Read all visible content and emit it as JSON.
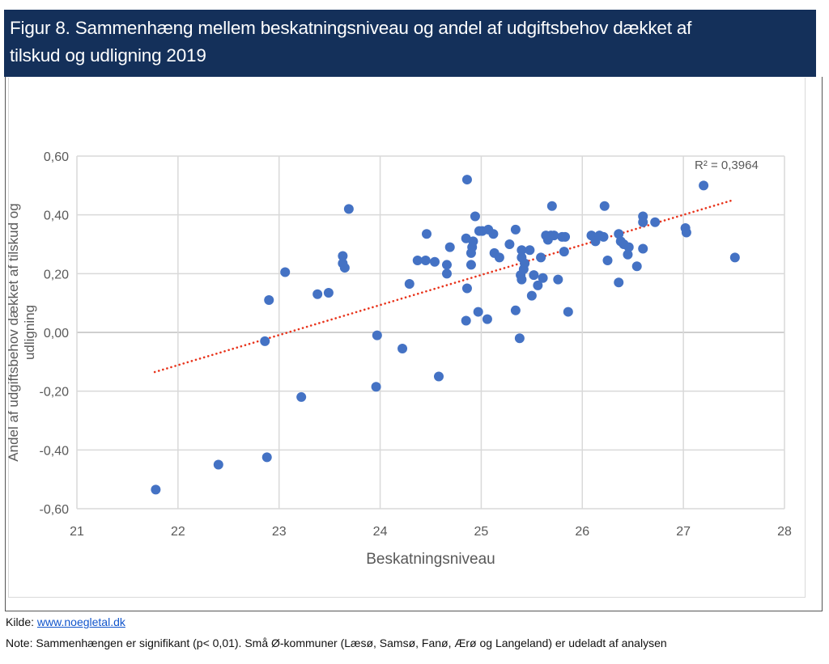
{
  "header": {
    "title_line1": "Figur 8. Sammenhæng mellem beskatningsniveau og andel af udgiftsbehov dækket af",
    "title_line2": "tilskud og udligning 2019"
  },
  "footer": {
    "source_label": "Kilde: ",
    "source_link": "www.noegletal.dk",
    "note": "Note: Sammenhængen er signifikant (p< 0,01). Små Ø-kommuner (Læsø, Samsø, Fanø, Ærø og Langeland) er udeladt af analysen"
  },
  "colors": {
    "header_bg": "#14305a",
    "point": "#4472c4",
    "trendline": "#e8341c",
    "grid": "#d9d9d9",
    "zero_line": "#bfbfbf"
  },
  "chart_data": {
    "type": "scatter",
    "title": "Figur 8. Sammenhæng mellem beskatningsniveau og andel af udgiftsbehov dækket af tilskud og udligning 2019",
    "xlabel": "Beskatningsniveau",
    "ylabel_line1": "Andel af udgiftsbehov dækket af tilskud og",
    "ylabel_line2": "udligning",
    "xlim": [
      21,
      28
    ],
    "ylim": [
      -0.6,
      0.6
    ],
    "x_ticks": [
      21,
      22,
      23,
      24,
      25,
      26,
      27,
      28
    ],
    "x_tick_labels": [
      "21",
      "22",
      "23",
      "24",
      "25",
      "26",
      "27",
      "28"
    ],
    "y_ticks": [
      0.6,
      0.4,
      0.2,
      0.0,
      -0.2,
      -0.4,
      -0.6
    ],
    "y_tick_labels": [
      "0,60",
      "0,40",
      "0,20",
      "0,00",
      "-0,20",
      "-0,40",
      "-0,60"
    ],
    "grid": true,
    "legend": "none",
    "trendline": {
      "type": "linear",
      "style": "dotted",
      "x_start": 21.77,
      "x_end": 27.5,
      "slope": 0.1023,
      "intercept": -2.362,
      "label": "R² = 0,3964"
    },
    "points": [
      {
        "x": 21.78,
        "y": -0.535
      },
      {
        "x": 22.4,
        "y": -0.45
      },
      {
        "x": 22.88,
        "y": -0.425
      },
      {
        "x": 22.86,
        "y": -0.03
      },
      {
        "x": 22.9,
        "y": 0.11
      },
      {
        "x": 23.06,
        "y": 0.205
      },
      {
        "x": 23.22,
        "y": -0.22
      },
      {
        "x": 23.38,
        "y": 0.13
      },
      {
        "x": 23.49,
        "y": 0.135
      },
      {
        "x": 23.63,
        "y": 0.26
      },
      {
        "x": 23.63,
        "y": 0.235
      },
      {
        "x": 23.65,
        "y": 0.22
      },
      {
        "x": 23.69,
        "y": 0.42
      },
      {
        "x": 23.96,
        "y": -0.185
      },
      {
        "x": 23.97,
        "y": -0.01
      },
      {
        "x": 24.22,
        "y": -0.055
      },
      {
        "x": 24.29,
        "y": 0.165
      },
      {
        "x": 24.37,
        "y": 0.245
      },
      {
        "x": 24.45,
        "y": 0.245
      },
      {
        "x": 24.46,
        "y": 0.335
      },
      {
        "x": 24.54,
        "y": 0.24
      },
      {
        "x": 24.58,
        "y": -0.15
      },
      {
        "x": 24.66,
        "y": 0.23
      },
      {
        "x": 24.66,
        "y": 0.2
      },
      {
        "x": 24.69,
        "y": 0.29
      },
      {
        "x": 24.85,
        "y": 0.32
      },
      {
        "x": 24.85,
        "y": 0.04
      },
      {
        "x": 24.86,
        "y": 0.52
      },
      {
        "x": 24.86,
        "y": 0.15
      },
      {
        "x": 24.9,
        "y": 0.27
      },
      {
        "x": 24.9,
        "y": 0.23
      },
      {
        "x": 24.91,
        "y": 0.29
      },
      {
        "x": 24.92,
        "y": 0.31
      },
      {
        "x": 24.94,
        "y": 0.395
      },
      {
        "x": 24.97,
        "y": 0.07
      },
      {
        "x": 24.98,
        "y": 0.345
      },
      {
        "x": 25.01,
        "y": 0.345
      },
      {
        "x": 25.06,
        "y": 0.045
      },
      {
        "x": 25.07,
        "y": 0.35
      },
      {
        "x": 25.12,
        "y": 0.335
      },
      {
        "x": 25.13,
        "y": 0.27
      },
      {
        "x": 25.18,
        "y": 0.255
      },
      {
        "x": 25.28,
        "y": 0.3
      },
      {
        "x": 25.34,
        "y": 0.35
      },
      {
        "x": 25.34,
        "y": 0.075
      },
      {
        "x": 25.38,
        "y": -0.02
      },
      {
        "x": 25.39,
        "y": 0.195
      },
      {
        "x": 25.4,
        "y": 0.28
      },
      {
        "x": 25.4,
        "y": 0.255
      },
      {
        "x": 25.4,
        "y": 0.18
      },
      {
        "x": 25.42,
        "y": 0.215
      },
      {
        "x": 25.43,
        "y": 0.235
      },
      {
        "x": 25.48,
        "y": 0.28
      },
      {
        "x": 25.5,
        "y": 0.125
      },
      {
        "x": 25.52,
        "y": 0.195
      },
      {
        "x": 25.56,
        "y": 0.16
      },
      {
        "x": 25.59,
        "y": 0.255
      },
      {
        "x": 25.61,
        "y": 0.185
      },
      {
        "x": 25.64,
        "y": 0.33
      },
      {
        "x": 25.66,
        "y": 0.315
      },
      {
        "x": 25.69,
        "y": 0.33
      },
      {
        "x": 25.7,
        "y": 0.43
      },
      {
        "x": 25.72,
        "y": 0.33
      },
      {
        "x": 25.76,
        "y": 0.18
      },
      {
        "x": 25.8,
        "y": 0.325
      },
      {
        "x": 25.82,
        "y": 0.275
      },
      {
        "x": 25.83,
        "y": 0.325
      },
      {
        "x": 25.86,
        "y": 0.07
      },
      {
        "x": 26.09,
        "y": 0.33
      },
      {
        "x": 26.13,
        "y": 0.31
      },
      {
        "x": 26.17,
        "y": 0.33
      },
      {
        "x": 26.21,
        "y": 0.325
      },
      {
        "x": 26.22,
        "y": 0.43
      },
      {
        "x": 26.25,
        "y": 0.245
      },
      {
        "x": 26.36,
        "y": 0.335
      },
      {
        "x": 26.36,
        "y": 0.17
      },
      {
        "x": 26.38,
        "y": 0.31
      },
      {
        "x": 26.41,
        "y": 0.3
      },
      {
        "x": 26.45,
        "y": 0.265
      },
      {
        "x": 26.46,
        "y": 0.29
      },
      {
        "x": 26.54,
        "y": 0.225
      },
      {
        "x": 26.6,
        "y": 0.395
      },
      {
        "x": 26.6,
        "y": 0.375
      },
      {
        "x": 26.6,
        "y": 0.285
      },
      {
        "x": 26.72,
        "y": 0.375
      },
      {
        "x": 27.02,
        "y": 0.355
      },
      {
        "x": 27.03,
        "y": 0.34
      },
      {
        "x": 27.2,
        "y": 0.5
      },
      {
        "x": 27.51,
        "y": 0.255
      }
    ]
  }
}
